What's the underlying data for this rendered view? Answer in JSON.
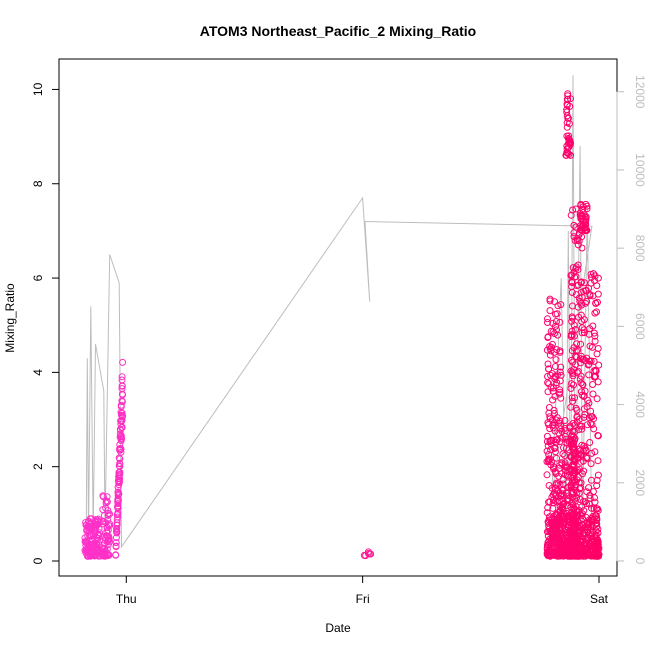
{
  "chart_data": {
    "type": "scatter",
    "title": "ATOM3 Northeast_Pacific_2 Mixing_Ratio",
    "xlabel": "Date",
    "ylabel": "Mixing_Ratio",
    "x_ticks": [
      "Thu",
      "Fri",
      "Sat"
    ],
    "y_ticks": [
      "0",
      "2",
      "4",
      "6",
      "8",
      "10"
    ],
    "y_right_ticks": [
      "0",
      "2000",
      "4000",
      "6000",
      "8000",
      "10000",
      "12000"
    ],
    "ylim": [
      0,
      10.2
    ],
    "y_right_lim": [
      0,
      12300
    ],
    "xlim_days": [
      -0.2,
      2.0
    ],
    "grid": false,
    "legend": "none",
    "point_color_start": "#ff33cc",
    "point_color_end": "#ff0066",
    "line_color": "#bdbdbd",
    "line_series": [
      [
        -0.17,
        0.2
      ],
      [
        -0.165,
        4.3
      ],
      [
        -0.16,
        0.5
      ],
      [
        -0.15,
        5.4
      ],
      [
        -0.14,
        0.6
      ],
      [
        -0.13,
        4.6
      ],
      [
        -0.095,
        3.6
      ],
      [
        -0.09,
        0.7
      ],
      [
        -0.07,
        6.5
      ],
      [
        -0.03,
        5.9
      ],
      [
        -0.02,
        0.3
      ],
      [
        1.0,
        7.7
      ],
      [
        1.03,
        5.5
      ],
      [
        1.01,
        7.2
      ],
      [
        1.97,
        7.1
      ],
      [
        1.8,
        1.4
      ],
      [
        1.84,
        6.0
      ],
      [
        1.86,
        0.4
      ],
      [
        1.87,
        7.0
      ],
      [
        1.88,
        0.3
      ],
      [
        1.89,
        10.3
      ],
      [
        1.9,
        0.5
      ],
      [
        1.92,
        8.8
      ],
      [
        1.93,
        0.6
      ],
      [
        1.95,
        7.5
      ],
      [
        1.97,
        0.4
      ]
    ],
    "point_clusters": [
      {
        "x_start": -0.175,
        "x_end": -0.14,
        "y_min": 0.1,
        "y_max": 0.9,
        "count": 80
      },
      {
        "x_start": -0.14,
        "x_end": -0.11,
        "y_min": 0.1,
        "y_max": 0.9,
        "count": 60
      },
      {
        "x_start": -0.1,
        "x_end": -0.07,
        "y_min": 0.1,
        "y_max": 1.4,
        "count": 60
      },
      {
        "x_start": -0.045,
        "x_end": -0.015,
        "y_min": 0.1,
        "y_max": 4.3,
        "count": 100,
        "ramp": true
      },
      {
        "x_start": 1.0,
        "x_end": 1.035,
        "y_min": 0.1,
        "y_max": 0.2,
        "count": 6
      },
      {
        "x_start": 1.78,
        "x_end": 1.84,
        "y_min": 0.1,
        "y_max": 5.8,
        "count": 220
      },
      {
        "x_start": 1.84,
        "x_end": 1.9,
        "y_min": 0.1,
        "y_max": 3.0,
        "count": 200
      },
      {
        "x_start": 1.86,
        "x_end": 1.88,
        "y_min": 8.6,
        "y_max": 10.1,
        "count": 40
      },
      {
        "x_start": 1.88,
        "x_end": 1.93,
        "y_min": 0.1,
        "y_max": 7.5,
        "count": 220
      },
      {
        "x_start": 1.92,
        "x_end": 1.95,
        "y_min": 7.0,
        "y_max": 7.7,
        "count": 40
      },
      {
        "x_start": 1.93,
        "x_end": 2.0,
        "y_min": 0.1,
        "y_max": 6.1,
        "count": 160
      },
      {
        "x_start": 1.78,
        "x_end": 2.0,
        "y_min": 0.1,
        "y_max": 1.0,
        "count": 300
      }
    ]
  }
}
